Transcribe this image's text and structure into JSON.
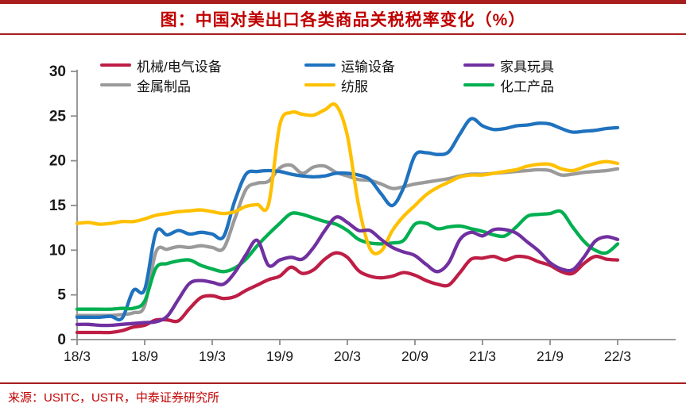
{
  "page": {
    "title": "图：中国对美出口各类商品关税税率变化（%）",
    "source": "来源：USITC，USTR，中泰证券研究所"
  },
  "colors": {
    "accent_red": "#C00000",
    "rule_red": "#A81D1D",
    "axis_gray": "#8C8C8C",
    "tick_label": "#1a1a1a"
  },
  "chart_data": {
    "type": "line",
    "title": "中国对美出口各类商品关税税率变化（%）",
    "x_start": "2018/3",
    "x_end": "2022/3",
    "x_step": "month",
    "x_tick_labels": [
      "18/3",
      "18/9",
      "19/3",
      "19/9",
      "20/3",
      "20/9",
      "21/3",
      "21/9",
      "22/3"
    ],
    "yticks": [
      0,
      5,
      10,
      15,
      20,
      25,
      30
    ],
    "ylim": [
      0,
      30
    ],
    "grid": false,
    "legend_position": "top",
    "series": [
      {
        "name": "机械/电气设备",
        "color": "#BE1E45",
        "values": [
          0.8,
          0.8,
          0.8,
          0.8,
          1.0,
          1.4,
          1.6,
          2.2,
          2.2,
          2.1,
          3.5,
          4.7,
          4.9,
          4.6,
          4.8,
          5.5,
          6.1,
          6.7,
          7.1,
          8.1,
          7.4,
          7.8,
          9.0,
          9.7,
          9.2,
          7.7,
          7.1,
          6.9,
          7.1,
          7.5,
          7.2,
          6.6,
          6.2,
          6.1,
          7.5,
          9.0,
          9.1,
          9.3,
          8.9,
          9.3,
          9.2,
          8.7,
          8.3,
          7.6,
          7.4,
          8.5,
          9.3,
          9.0,
          8.9
        ]
      },
      {
        "name": "运输设备",
        "color": "#1F72BE",
        "values": [
          2.5,
          2.5,
          2.5,
          2.6,
          2.4,
          5.5,
          5.6,
          12.0,
          11.7,
          12.2,
          11.8,
          12.0,
          11.8,
          11.5,
          15.5,
          18.5,
          18.8,
          18.9,
          18.8,
          18.5,
          18.3,
          18.2,
          18.3,
          18.6,
          18.6,
          18.4,
          17.9,
          16.3,
          15.0,
          17.0,
          20.6,
          20.9,
          20.7,
          21.0,
          23.0,
          24.7,
          23.9,
          23.5,
          23.6,
          23.9,
          24.0,
          24.2,
          24.1,
          23.6,
          23.2,
          23.3,
          23.4,
          23.6,
          23.7
        ]
      },
      {
        "name": "家具玩具",
        "color": "#7030A0",
        "values": [
          1.7,
          1.7,
          1.6,
          1.6,
          1.7,
          1.8,
          1.9,
          2.0,
          2.6,
          4.5,
          6.3,
          6.6,
          6.4,
          6.2,
          7.5,
          9.5,
          11.1,
          8.3,
          8.9,
          9.2,
          9.0,
          10.3,
          12.2,
          13.7,
          13.1,
          12.2,
          12.2,
          11.2,
          10.3,
          9.8,
          9.4,
          8.4,
          7.6,
          8.6,
          11.2,
          12.0,
          11.6,
          12.3,
          12.3,
          11.9,
          10.9,
          9.9,
          8.6,
          7.9,
          7.8,
          9.2,
          11.0,
          11.5,
          11.2
        ]
      },
      {
        "name": "金属制品",
        "color": "#9A9A9A",
        "values": [
          2.7,
          2.7,
          2.7,
          2.7,
          2.8,
          3.0,
          3.8,
          9.8,
          10.1,
          10.4,
          10.3,
          10.5,
          10.3,
          10.2,
          13.5,
          16.8,
          17.5,
          17.7,
          19.2,
          19.5,
          18.6,
          19.3,
          19.4,
          18.7,
          18.3,
          17.9,
          17.8,
          17.4,
          16.9,
          17.1,
          17.4,
          17.6,
          17.8,
          18.0,
          18.3,
          18.5,
          18.5,
          18.6,
          18.7,
          18.8,
          18.9,
          19.0,
          18.9,
          18.4,
          18.5,
          18.7,
          18.8,
          18.9,
          19.1
        ]
      },
      {
        "name": "纺服",
        "color": "#FFC000",
        "values": [
          13.0,
          13.1,
          12.9,
          13.0,
          13.2,
          13.2,
          13.5,
          13.9,
          14.1,
          14.3,
          14.4,
          14.5,
          14.3,
          14.1,
          14.3,
          14.9,
          15.1,
          15.1,
          24.0,
          25.4,
          25.2,
          25.1,
          25.7,
          26.2,
          22.8,
          15.0,
          10.2,
          9.9,
          12.2,
          13.8,
          15.0,
          16.2,
          17.0,
          17.6,
          18.2,
          18.4,
          18.4,
          18.6,
          18.8,
          19.0,
          19.4,
          19.6,
          19.6,
          19.1,
          18.9,
          19.3,
          19.7,
          19.9,
          19.7
        ]
      },
      {
        "name": "化工产品",
        "color": "#00AF50",
        "values": [
          3.4,
          3.4,
          3.4,
          3.4,
          3.5,
          3.5,
          4.3,
          8.0,
          8.5,
          8.8,
          8.9,
          8.3,
          7.9,
          7.6,
          8.0,
          9.0,
          10.5,
          11.8,
          13.0,
          14.1,
          14.0,
          13.6,
          13.2,
          12.9,
          12.2,
          11.2,
          10.8,
          10.7,
          10.8,
          11.1,
          12.9,
          13.0,
          12.4,
          12.6,
          12.7,
          12.4,
          12.1,
          11.7,
          11.6,
          12.6,
          13.8,
          14.0,
          14.1,
          14.3,
          12.6,
          11.0,
          10.0,
          9.7,
          10.7
        ]
      }
    ]
  }
}
